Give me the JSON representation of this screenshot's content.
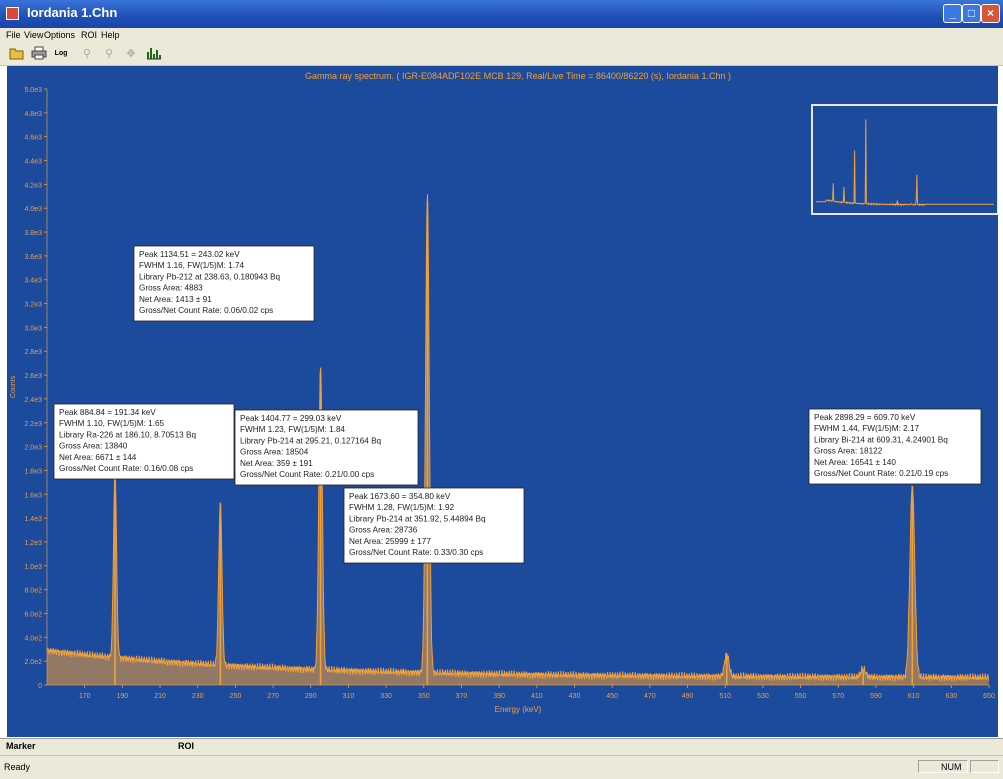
{
  "window": {
    "title": "Iordania 1.Chn"
  },
  "menu": [
    "File",
    "View",
    "Options",
    "ROI",
    "Help"
  ],
  "toolbar": {
    "log_label": "Log"
  },
  "chart_data": {
    "type": "line",
    "title": "Gamma ray spectrum.  ( IGR-E084ADF102E MCB 129,  Real/Live Time = 86400/86220 (s), Iordania 1.Chn )",
    "xlabel": "Energy (keV)",
    "ylabel": "Counts",
    "xlim": [
      150,
      650
    ],
    "ylim": [
      0,
      5000
    ],
    "y_ticks": [
      "0",
      "2.0e2",
      "4.0e2",
      "6.0e2",
      "8.0e2",
      "1.0e3",
      "1.2e3",
      "1.4e3",
      "1.6e3",
      "1.8e3",
      "2.0e3",
      "2.2e3",
      "2.4e3",
      "2.6e3",
      "2.8e3",
      "3.0e3",
      "3.2e3",
      "3.4e3",
      "3.6e3",
      "3.8e3",
      "4.0e3",
      "4.2e3",
      "4.4e3",
      "4.6e3",
      "4.8e3",
      "5.0e3"
    ],
    "x_ticks": [
      "170",
      "190",
      "210",
      "230",
      "250",
      "270",
      "290",
      "310",
      "330",
      "350",
      "370",
      "390",
      "410",
      "430",
      "450",
      "470",
      "490",
      "510",
      "530",
      "550",
      "570",
      "590",
      "610",
      "630",
      "650"
    ],
    "grid": false,
    "colors": {
      "background": "#1c4a9c",
      "spectrum": "#f2a03a",
      "text": "#f2a03a",
      "label_bg": "#ffffff"
    },
    "peaks": [
      {
        "energy": 186.1,
        "counts": 1620
      },
      {
        "energy": 242.0,
        "counts": 1430
      },
      {
        "energy": 295.2,
        "counts": 2620
      },
      {
        "energy": 351.9,
        "counts": 4050
      },
      {
        "energy": 510.8,
        "counts": 250
      },
      {
        "energy": 583.2,
        "counts": 130
      },
      {
        "energy": 609.3,
        "counts": 1670
      }
    ],
    "peak_labels": [
      {
        "lines": [
          "Peak 1134.51 = 243.02 keV",
          "FWHM 1.16, FW(1/5)M: 1.74",
          "Library Pb-212 at 238.63, 0.180943 Bq",
          "Gross Area: 4883",
          "Net Area:     1413 ± 91",
          "Gross/Net Count Rate: 0.06/0.02 cps"
        ]
      },
      {
        "lines": [
          "Peak 884.84 = 191.34 keV",
          "FWHM 1.10, FW(1/5)M: 1.65",
          "Library Ra-226 at 186.10, 8.70513 Bq",
          "Gross Area: 13840",
          "Net Area:      6671 ± 144",
          "Gross/Net Count Rate: 0.16/0.08 cps"
        ]
      },
      {
        "lines": [
          "Peak 1404.77 = 299.03 keV",
          "FWHM 1.23, FW(1/5)M: 1.84",
          "Library Pb-214 at 295.21, 0.127164 Bq",
          "Gross Area: 18504",
          "Net Area:      359 ± 191",
          "Gross/Net Count Rate: 0.21/0.00 cps"
        ]
      },
      {
        "lines": [
          "Peak 1673.60 = 354.80 keV",
          "FWHM 1.28, FW(1/5)M: 1.92",
          "Library Pb-214 at 351.92, 5.44894 Bq",
          "Gross Area: 28736",
          "Net Area:      25999 ± 177",
          "Gross/Net Count Rate: 0.33/0.30 cps"
        ]
      },
      {
        "lines": [
          "Peak 2898.29 = 609.70 keV",
          "FWHM 1.44, FW(1/5)M: 2.17",
          "Library Bi-214 at 609.31, 4.24901 Bq",
          "Gross Area: 18122",
          "Net Area:      16541 ± 140",
          "Gross/Net Count Rate: 0.21/0.19 cps"
        ]
      }
    ]
  },
  "bottom": {
    "marker_label": "Marker",
    "roi_label": "ROI"
  },
  "status": {
    "text": "Ready",
    "num": "NUM"
  }
}
